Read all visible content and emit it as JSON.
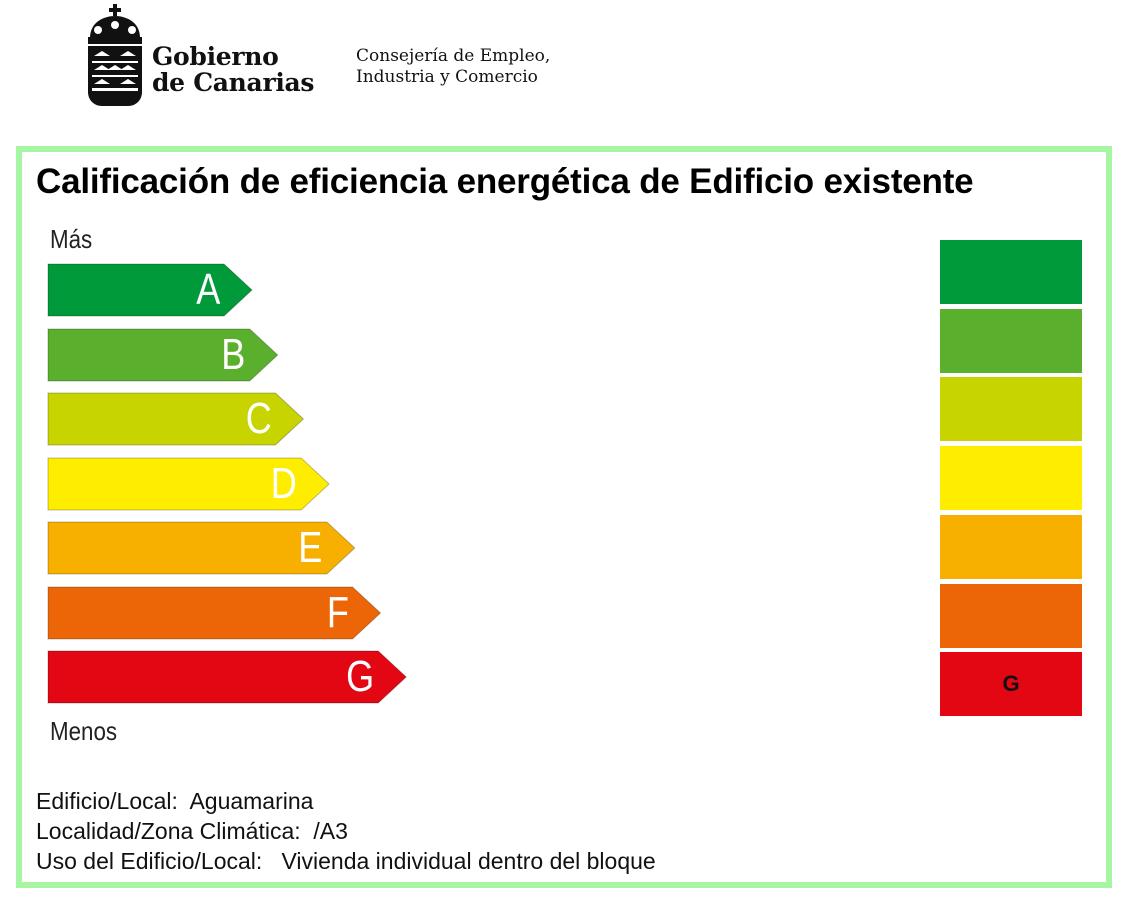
{
  "header": {
    "org_name_line1": "Gobierno",
    "org_name_line2": "de Canarias",
    "dept_line1": "Consejería de Empleo,",
    "dept_line2": "Industria y Comercio",
    "crest_icon": "canary-islands-crest-icon"
  },
  "certificate": {
    "title": "Calificación de eficiencia energética de Edificio existente",
    "more_label": "Más",
    "less_label": "Menos",
    "scale": [
      {
        "letter": "A",
        "color": "#009a3a"
      },
      {
        "letter": "B",
        "color": "#5aaf2d"
      },
      {
        "letter": "C",
        "color": "#c8d400"
      },
      {
        "letter": "D",
        "color": "#ffed00"
      },
      {
        "letter": "E",
        "color": "#f8b000"
      },
      {
        "letter": "F",
        "color": "#ec6608"
      },
      {
        "letter": "G",
        "color": "#e30613"
      }
    ],
    "side_scale": [
      {
        "color": "#009a3a",
        "label": ""
      },
      {
        "color": "#5aaf2d",
        "label": ""
      },
      {
        "color": "#c8d400",
        "label": ""
      },
      {
        "color": "#ffed00",
        "label": ""
      },
      {
        "color": "#f8b000",
        "label": ""
      },
      {
        "color": "#ec6608",
        "label": ""
      },
      {
        "color": "#e30613",
        "label": "G"
      }
    ],
    "rating": "G",
    "frame_color": "#a6f5a3"
  },
  "info": {
    "building_label": "Edificio/Local:",
    "building_value": "Aguamarina",
    "locality_label": "Localidad/Zona Climática:",
    "locality_value": "/A3",
    "use_label": "Uso del Edificio/Local:",
    "use_value": "Vivienda individual dentro del bloque"
  }
}
